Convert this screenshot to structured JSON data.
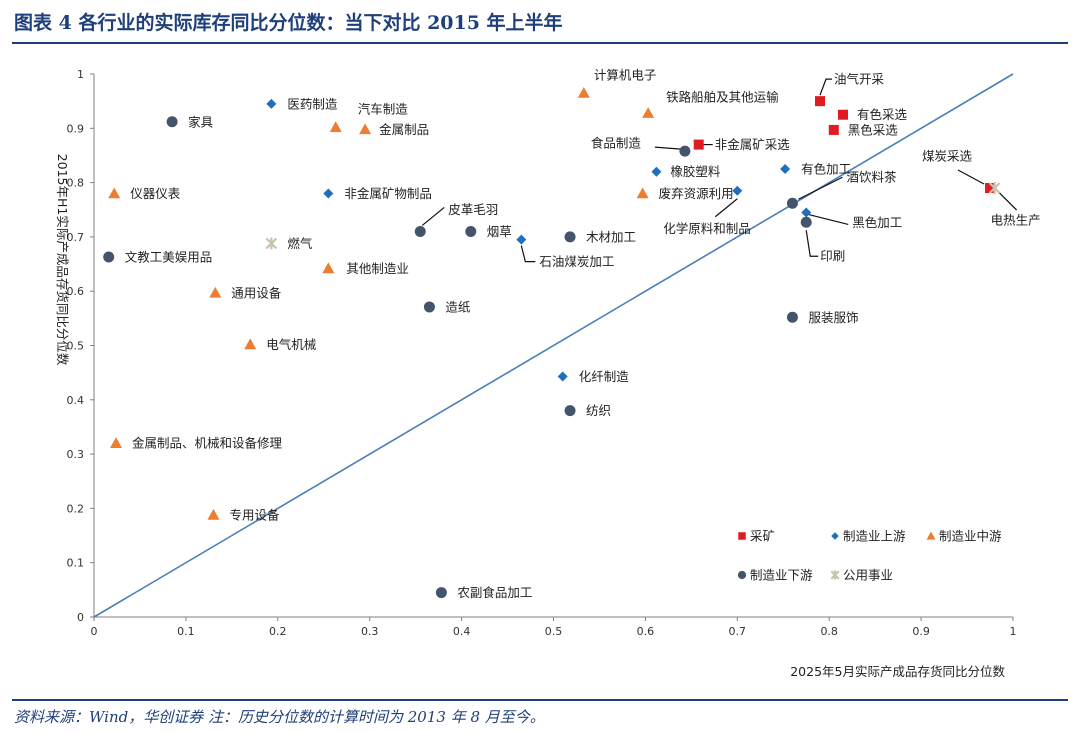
{
  "figure": {
    "title": "图表 4   各行业的实际库存同比分位数：当下对比 2015 年上半年",
    "source_note": "资料来源：Wind，华创证券  注：历史分位数的计算时间为 2013 年 8 月至今。"
  },
  "chart_data": {
    "type": "scatter",
    "xlabel": "2025年5月实际产成品存货同比分位数",
    "ylabel": "2015年H1实际产成品存货同比分位数",
    "xlim": [
      0,
      1
    ],
    "ylim": [
      0,
      1
    ],
    "x_ticks": [
      "0",
      "0.1",
      "0.2",
      "0.3",
      "0.4",
      "0.5",
      "0.6",
      "0.7",
      "0.8",
      "0.9",
      "1"
    ],
    "y_ticks": [
      "0",
      "0.1",
      "0.2",
      "0.3",
      "0.4",
      "0.5",
      "0.6",
      "0.7",
      "0.8",
      "0.9",
      "1"
    ],
    "grid": false,
    "legend_position": "bottom-right",
    "reference_line": {
      "from": [
        0,
        0
      ],
      "to": [
        1,
        1
      ],
      "color": "#4a7ebb"
    },
    "series": [
      {
        "name": "采矿",
        "marker": "square",
        "color": "#e21a22",
        "points": [
          {
            "label": "油气开采",
            "x": 0.79,
            "y": 0.95
          },
          {
            "label": "有色采选",
            "x": 0.815,
            "y": 0.925
          },
          {
            "label": "黑色采选",
            "x": 0.805,
            "y": 0.897
          },
          {
            "label": "非金属矿采选",
            "x": 0.658,
            "y": 0.87
          },
          {
            "label": "煤炭采选",
            "x": 0.975,
            "y": 0.79
          }
        ]
      },
      {
        "name": "制造业上游",
        "marker": "diamond",
        "color": "#1f6fbd",
        "points": [
          {
            "label": "医药制造",
            "x": 0.193,
            "y": 0.945
          },
          {
            "label": "非金属矿物制品",
            "x": 0.255,
            "y": 0.78
          },
          {
            "label": "橡胶塑料",
            "x": 0.612,
            "y": 0.82
          },
          {
            "label": "有色加工",
            "x": 0.752,
            "y": 0.825
          },
          {
            "label": "化学原料和制品",
            "x": 0.7,
            "y": 0.785
          },
          {
            "label": "黑色加工",
            "x": 0.775,
            "y": 0.745
          },
          {
            "label": "石油煤炭加工",
            "x": 0.465,
            "y": 0.695
          },
          {
            "label": "化纤制造",
            "x": 0.51,
            "y": 0.443
          }
        ]
      },
      {
        "name": "制造业中游",
        "marker": "triangle",
        "color": "#ee7d31",
        "points": [
          {
            "label": "计算机电子",
            "x": 0.533,
            "y": 0.965
          },
          {
            "label": "铁路船舶及其他运输",
            "x": 0.603,
            "y": 0.928
          },
          {
            "label": "汽车制造",
            "x": 0.263,
            "y": 0.902
          },
          {
            "label": "金属制品",
            "x": 0.295,
            "y": 0.898
          },
          {
            "label": "废弃资源利用",
            "x": 0.597,
            "y": 0.78
          },
          {
            "label": "仪器仪表",
            "x": 0.022,
            "y": 0.78
          },
          {
            "label": "其他制造业",
            "x": 0.255,
            "y": 0.642
          },
          {
            "label": "通用设备",
            "x": 0.132,
            "y": 0.597
          },
          {
            "label": "电气机械",
            "x": 0.17,
            "y": 0.502
          },
          {
            "label": "金属制品、机械和设备修理",
            "x": 0.024,
            "y": 0.32
          },
          {
            "label": "专用设备",
            "x": 0.13,
            "y": 0.188
          }
        ]
      },
      {
        "name": "制造业下游",
        "marker": "circle",
        "color": "#44546a",
        "points": [
          {
            "label": "家具",
            "x": 0.085,
            "y": 0.912
          },
          {
            "label": "食品制造",
            "x": 0.643,
            "y": 0.858
          },
          {
            "label": "酒饮料茶",
            "x": 0.76,
            "y": 0.762
          },
          {
            "label": "印刷",
            "x": 0.775,
            "y": 0.727
          },
          {
            "label": "皮革毛羽",
            "x": 0.355,
            "y": 0.71
          },
          {
            "label": "烟草",
            "x": 0.41,
            "y": 0.71
          },
          {
            "label": "木材加工",
            "x": 0.518,
            "y": 0.7
          },
          {
            "label": "文教工美娱用品",
            "x": 0.016,
            "y": 0.663
          },
          {
            "label": "造纸",
            "x": 0.365,
            "y": 0.571
          },
          {
            "label": "服装服饰",
            "x": 0.76,
            "y": 0.552
          },
          {
            "label": "纺织",
            "x": 0.518,
            "y": 0.38
          },
          {
            "label": "农副食品加工",
            "x": 0.378,
            "y": 0.045
          }
        ]
      },
      {
        "name": "公用事业",
        "marker": "cross",
        "color": "#c9c3b0",
        "points": [
          {
            "label": "燃气",
            "x": 0.193,
            "y": 0.688
          },
          {
            "label": "电热生产",
            "x": 0.98,
            "y": 0.79
          }
        ]
      }
    ]
  }
}
